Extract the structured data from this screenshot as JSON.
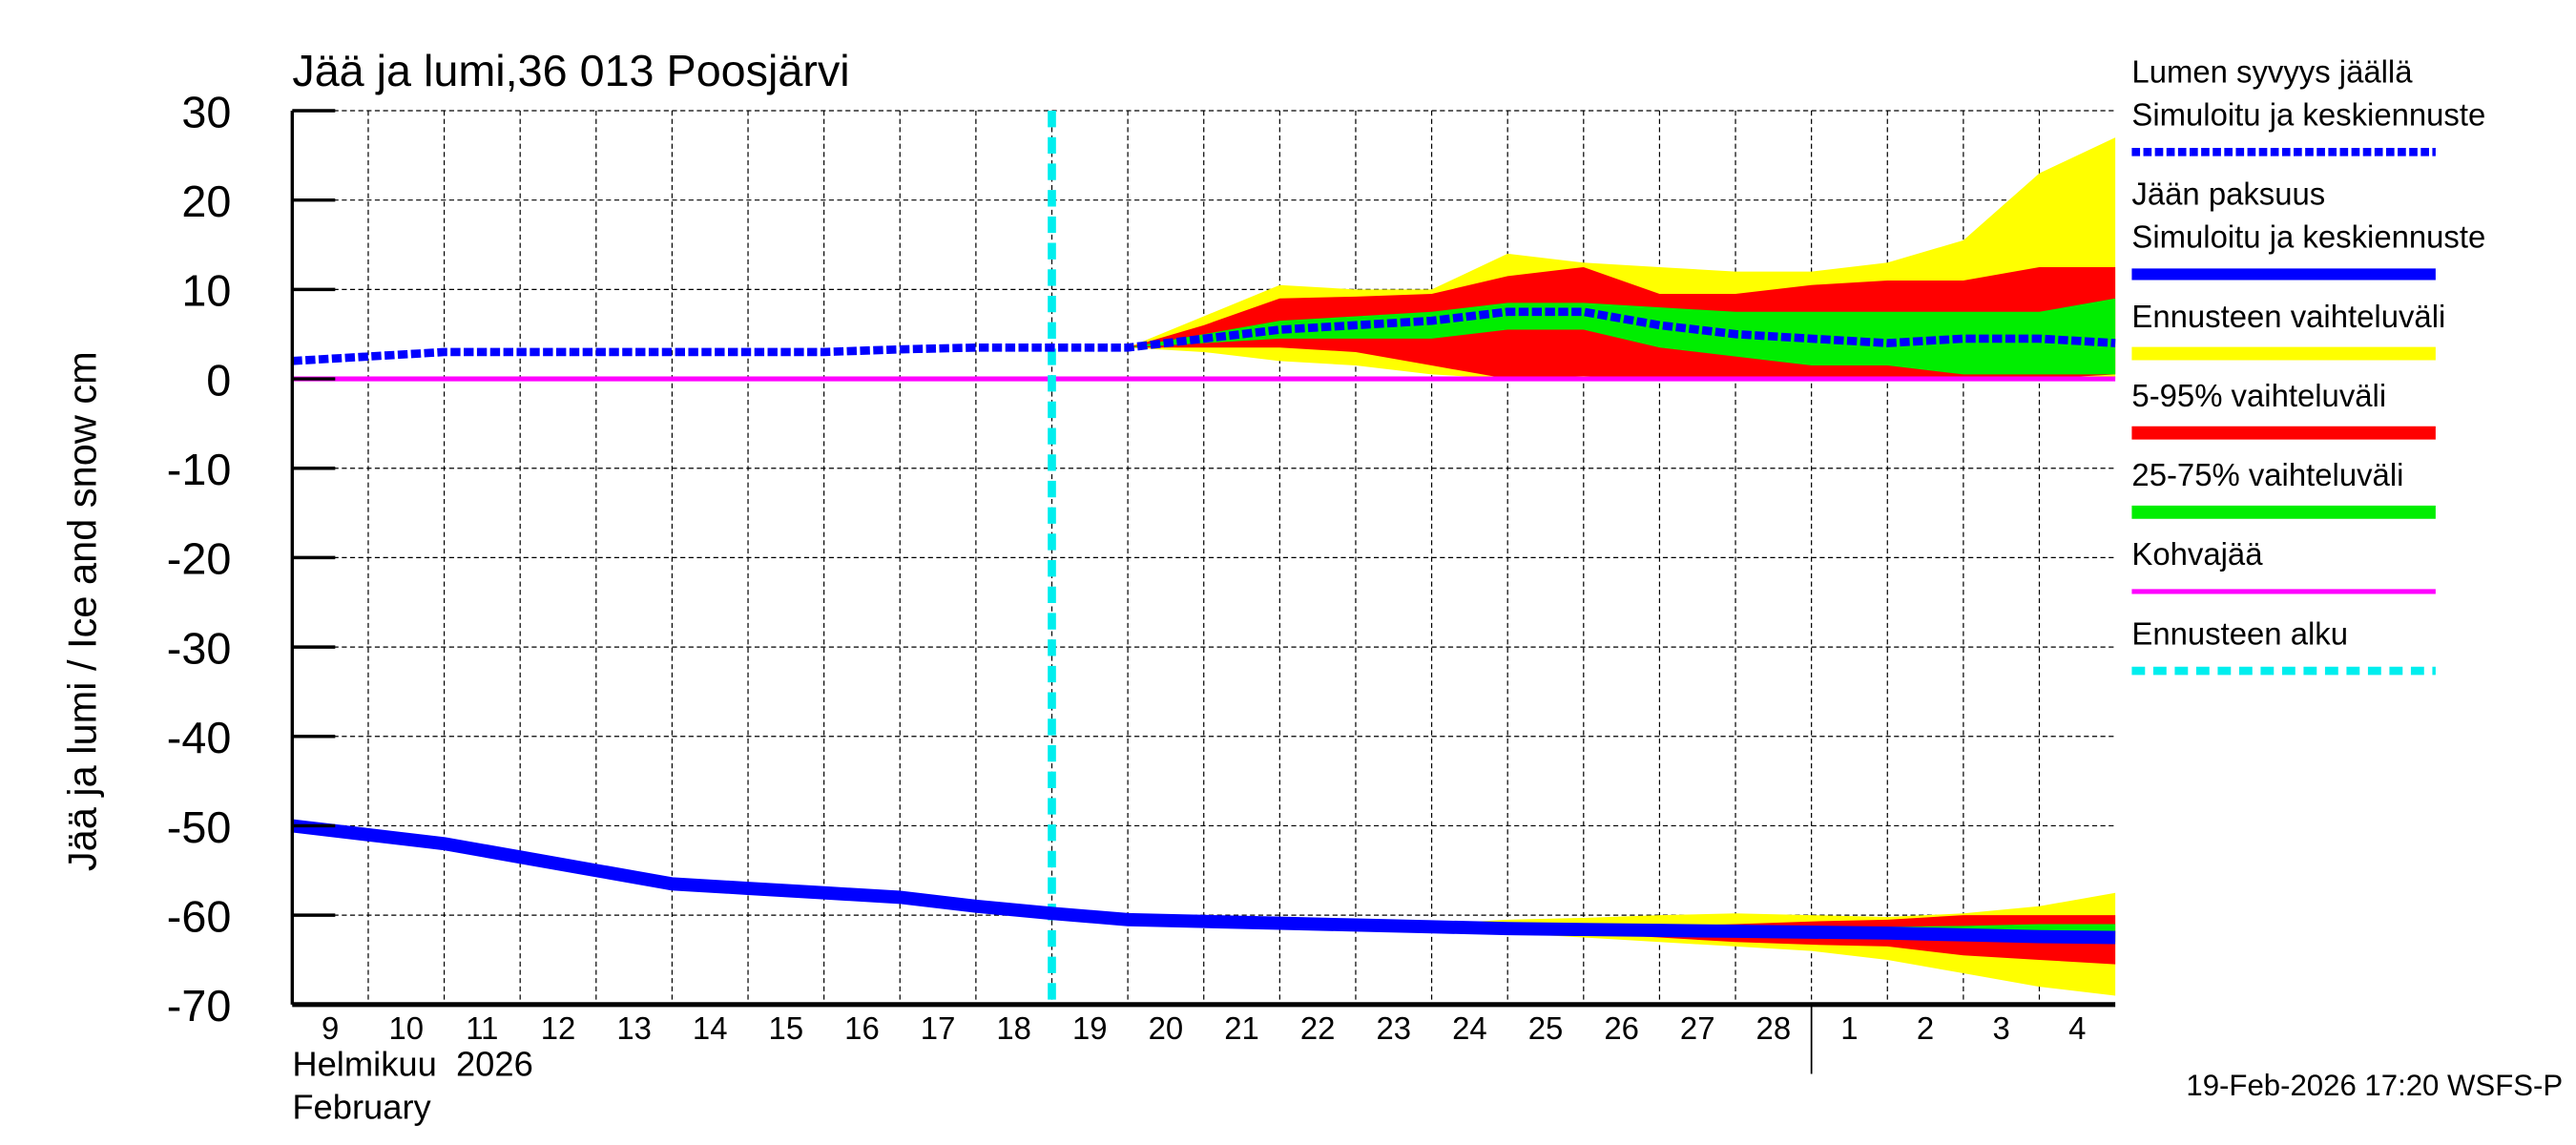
{
  "chart_data": {
    "type": "area",
    "title": "Jää ja lumi,36 013 Poosjärvi",
    "ylabel": "Jää ja lumi / Ice and snow    cm",
    "ylim": [
      -70,
      30
    ],
    "yticks": [
      30,
      20,
      10,
      0,
      -10,
      -20,
      -30,
      -40,
      -50,
      -60,
      -70
    ],
    "grid": true,
    "legend_placement": "right",
    "x_dates": [
      "2026-02-09",
      "2026-02-10",
      "2026-02-11",
      "2026-02-12",
      "2026-02-13",
      "2026-02-14",
      "2026-02-15",
      "2026-02-16",
      "2026-02-17",
      "2026-02-18",
      "2026-02-19",
      "2026-02-20",
      "2026-02-21",
      "2026-02-22",
      "2026-02-23",
      "2026-02-24",
      "2026-02-25",
      "2026-02-26",
      "2026-02-27",
      "2026-02-28",
      "2026-03-01",
      "2026-03-02",
      "2026-03-03",
      "2026-03-04",
      "2026-03-05"
    ],
    "xtick_labels": [
      "9",
      "10",
      "11",
      "12",
      "13",
      "14",
      "15",
      "16",
      "17",
      "18",
      "19",
      "20",
      "21",
      "22",
      "23",
      "24",
      "25",
      "26",
      "27",
      "28",
      "1",
      "2",
      "3",
      "4"
    ],
    "xlabel_month_fi": "Helmikuu  2026",
    "xlabel_month_en": "February",
    "forecast_start": "2026-02-19",
    "timestamp": "19-Feb-2026 17:20 WSFS-P",
    "series": {
      "snow_depth": [
        2,
        2.5,
        3,
        3,
        3,
        3,
        3,
        3,
        3.3,
        3.5,
        3.5,
        3.5,
        4.5,
        5.5,
        6,
        6.5,
        7.5,
        7.5,
        6,
        5,
        4.5,
        4,
        4.5,
        4.5,
        4
      ],
      "ice_thickness": [
        -50,
        -51,
        -52,
        -53.5,
        -55,
        -56.5,
        -57,
        -57.5,
        -58,
        -59,
        -59.8,
        -60.5,
        -60.7,
        -60.9,
        -61.1,
        -61.3,
        -61.5,
        -61.6,
        -61.7,
        -61.8,
        -61.9,
        -62,
        -62.2,
        -62.4,
        -62.5
      ],
      "slush_ice": 0,
      "snow_bands": {
        "start_index": 11,
        "range_upper": [
          3.5,
          7,
          10.5,
          10,
          10,
          14,
          13,
          12.5,
          12,
          12,
          13,
          15.5,
          23,
          27
        ],
        "range_lower": [
          3.5,
          3,
          2,
          1.5,
          0.5,
          0,
          0,
          0,
          0,
          0,
          0,
          0,
          0,
          0
        ],
        "p95": [
          3.5,
          6,
          9,
          9.2,
          9.5,
          11.5,
          12.5,
          9.5,
          9.5,
          10.5,
          11,
          11,
          12.5,
          12.5
        ],
        "p5": [
          3.5,
          3.5,
          3.5,
          3,
          1.5,
          0,
          0.3,
          0,
          0,
          0,
          0,
          0,
          0,
          0.5
        ],
        "p75": [
          3.5,
          5,
          6.5,
          7,
          7.5,
          8.5,
          8.5,
          8,
          7.5,
          7.5,
          7.5,
          7.5,
          7.5,
          9
        ],
        "p25": [
          3.5,
          4,
          4.5,
          4.5,
          4.5,
          5.5,
          5.5,
          3.5,
          2.5,
          1.5,
          1.5,
          0.5,
          0.5,
          0.5
        ]
      },
      "ice_bands": {
        "start_index": 14,
        "range_upper": [
          -61,
          -61,
          -60.5,
          -60.3,
          -60,
          -59.8,
          -60,
          -60.2,
          -59.8,
          -59,
          -57.5
        ],
        "range_lower": [
          -61.5,
          -61.8,
          -62,
          -62.5,
          -63,
          -63.5,
          -64,
          -65,
          -66.5,
          -68,
          -69
        ],
        "p95": [
          -61,
          -61.1,
          -61.2,
          -61.2,
          -61.2,
          -61,
          -60.7,
          -60.5,
          -60,
          -60,
          -60
        ],
        "p5": [
          -61.3,
          -61.6,
          -61.8,
          -62,
          -62.5,
          -63,
          -63.3,
          -63.5,
          -64.5,
          -65,
          -65.5
        ],
        "p75": [
          -61.1,
          -61.3,
          -61.5,
          -61.6,
          -61.6,
          -61.5,
          -61.5,
          -61.3,
          -61.2,
          -61,
          -61
        ],
        "p25": [
          -61.2,
          -61.5,
          -61.7,
          -61.8,
          -62,
          -62.2,
          -62.3,
          -62.5,
          -62.7,
          -62.8,
          -63
        ]
      }
    },
    "legend": [
      {
        "label1": "Lumen syvyys jäällä",
        "label2": "Simuloitu ja keskiennuste",
        "color": "#0000ff",
        "style": "dashed"
      },
      {
        "label1": "Jään paksuus",
        "label2": "Simuloitu ja keskiennuste",
        "color": "#0000ff",
        "style": "solid"
      },
      {
        "label1": "Ennusteen vaihteluväli",
        "color": "#ffff00",
        "style": "band"
      },
      {
        "label1": "5-95% vaihteluväli",
        "color": "#ff0000",
        "style": "band"
      },
      {
        "label1": "25-75% vaihteluväli",
        "color": "#00ee00",
        "style": "band"
      },
      {
        "label1": "Kohvajää",
        "color": "#ff00ff",
        "style": "solid"
      },
      {
        "label1": "Ennusteen alku",
        "color": "#00eeee",
        "style": "dashed"
      }
    ]
  }
}
